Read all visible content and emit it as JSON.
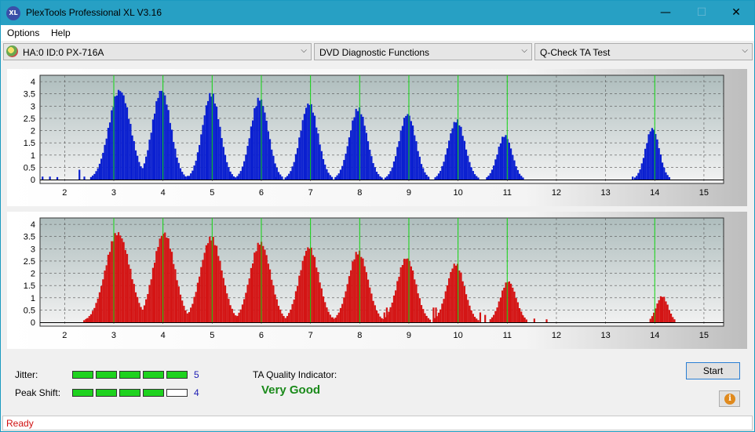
{
  "window": {
    "title": "PlexTools Professional XL V3.16",
    "icon_label": "XL",
    "minimize_glyph": "—",
    "maximize_glyph": "☐",
    "close_glyph": "✕"
  },
  "menu": {
    "items": [
      "Options",
      "Help"
    ]
  },
  "toolbar": {
    "drive": "HA:0 ID:0  PX-716A",
    "function": "DVD Diagnostic Functions",
    "test": "Q-Check TA Test",
    "arrow_glyph": "⌵"
  },
  "colors": {
    "top_bars": "#0a1fd0",
    "bottom_bars": "#d41414",
    "marker_lines": "#12d612",
    "plot_bg_top": "#aebdbd",
    "plot_bg_bottom": "#f3f3f3"
  },
  "chart_data": [
    {
      "type": "bar",
      "name": "land-top",
      "x_ticks": [
        2,
        3,
        4,
        5,
        6,
        7,
        8,
        9,
        10,
        11,
        12,
        13,
        14,
        15
      ],
      "y_ticks": [
        "0",
        "0.5",
        "1",
        "1.5",
        "2",
        "2.5",
        "3",
        "3.5",
        "4"
      ],
      "xlim": [
        1.5,
        15.4
      ],
      "ylim": [
        0,
        4.1
      ],
      "grid": true,
      "markers": [
        3,
        4,
        5,
        6,
        7,
        8,
        9,
        10,
        11,
        14
      ],
      "peaks": [
        {
          "center": 3.12,
          "height": 3.75,
          "width": 0.22
        },
        {
          "center": 3.97,
          "height": 3.75,
          "width": 0.19
        },
        {
          "center": 4.98,
          "height": 3.6,
          "width": 0.18
        },
        {
          "center": 5.96,
          "height": 3.4,
          "width": 0.18
        },
        {
          "center": 6.97,
          "height": 3.2,
          "width": 0.18
        },
        {
          "center": 7.97,
          "height": 2.98,
          "width": 0.18
        },
        {
          "center": 8.97,
          "height": 2.75,
          "width": 0.17
        },
        {
          "center": 9.97,
          "height": 2.48,
          "width": 0.17
        },
        {
          "center": 10.95,
          "height": 1.85,
          "width": 0.15
        },
        {
          "center": 13.95,
          "height": 2.15,
          "width": 0.14
        }
      ],
      "noise": [
        [
          1.55,
          0.12
        ],
        [
          1.7,
          0.12
        ],
        [
          1.85,
          0.1
        ],
        [
          2.3,
          0.4
        ],
        [
          2.4,
          0.12
        ],
        [
          4.5,
          0.15
        ],
        [
          5.4,
          0.15
        ],
        [
          6.3,
          0.1
        ],
        [
          7.6,
          0.12
        ],
        [
          8.6,
          0.1
        ],
        [
          9.4,
          0.1
        ],
        [
          10.6,
          0.1
        ],
        [
          13.55,
          0.12
        ]
      ]
    },
    {
      "type": "bar",
      "name": "pit-bottom",
      "x_ticks": [
        2,
        3,
        4,
        5,
        6,
        7,
        8,
        9,
        10,
        11,
        12,
        13,
        14,
        15
      ],
      "y_ticks": [
        "0",
        "0.5",
        "1",
        "1.5",
        "2",
        "2.5",
        "3",
        "3.5",
        "4"
      ],
      "xlim": [
        1.5,
        15.4
      ],
      "ylim": [
        0,
        4.1
      ],
      "grid": true,
      "markers": [
        3,
        4,
        5,
        6,
        7,
        8,
        9,
        10,
        11,
        14
      ],
      "peaks": [
        {
          "center": 3.08,
          "height": 3.75,
          "width": 0.25
        },
        {
          "center": 4.02,
          "height": 3.75,
          "width": 0.22
        },
        {
          "center": 4.98,
          "height": 3.55,
          "width": 0.22
        },
        {
          "center": 5.98,
          "height": 3.35,
          "width": 0.21
        },
        {
          "center": 6.97,
          "height": 3.15,
          "width": 0.2
        },
        {
          "center": 7.97,
          "height": 2.95,
          "width": 0.2
        },
        {
          "center": 8.95,
          "height": 2.7,
          "width": 0.19
        },
        {
          "center": 9.95,
          "height": 2.45,
          "width": 0.18
        },
        {
          "center": 11.02,
          "height": 1.72,
          "width": 0.16
        },
        {
          "center": 14.15,
          "height": 1.1,
          "width": 0.12
        }
      ],
      "noise": [
        [
          2.45,
          0.15
        ],
        [
          2.5,
          0.15
        ],
        [
          5.5,
          0.2
        ],
        [
          7.45,
          0.2
        ],
        [
          8.5,
          0.4
        ],
        [
          8.55,
          0.6
        ],
        [
          9.5,
          0.6
        ],
        [
          9.55,
          0.6
        ],
        [
          10.45,
          0.4
        ],
        [
          10.55,
          0.3
        ],
        [
          11.3,
          0.3
        ],
        [
          11.55,
          0.15
        ],
        [
          11.8,
          0.12
        ]
      ]
    }
  ],
  "bottom": {
    "jitter_label": "Jitter:",
    "jitter_value": "5",
    "jitter_level": 5,
    "peak_shift_label": "Peak Shift:",
    "peak_shift_value": "4",
    "peak_shift_level": 4,
    "ta_label": "TA Quality Indicator:",
    "ta_value": "Very Good",
    "start_label": "Start",
    "info_glyph": "i"
  },
  "status": {
    "text": "Ready"
  }
}
